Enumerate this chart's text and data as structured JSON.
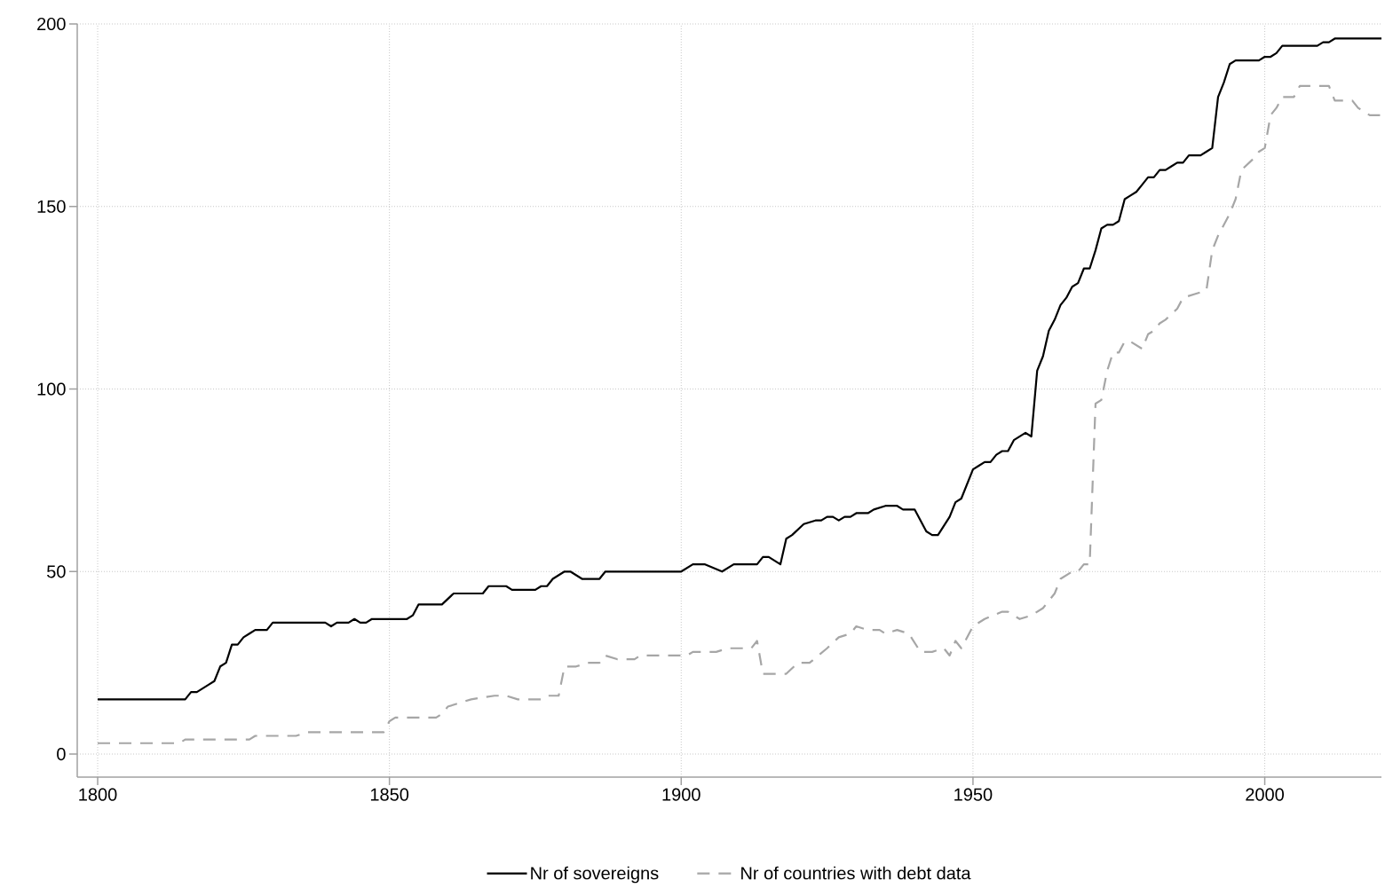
{
  "chart_data": {
    "type": "line",
    "xlim": [
      1796.5,
      2020
    ],
    "ylim": [
      -6.3,
      200
    ],
    "xticks": [
      1800,
      1850,
      1900,
      1950,
      2000
    ],
    "yticks": [
      0,
      50,
      100,
      150,
      200
    ],
    "grid": true,
    "legend": "bottom",
    "marker": "none",
    "series": [
      {
        "name": "Nr of sovereigns",
        "color": "#000000",
        "line_style": "solid",
        "x": [
          1800,
          1815,
          1816,
          1817,
          1819,
          1820,
          1821,
          1822,
          1823,
          1824,
          1825,
          1826,
          1827,
          1829,
          1830,
          1839,
          1840,
          1841,
          1843,
          1844,
          1845,
          1846,
          1847,
          1853,
          1854,
          1855,
          1859,
          1861,
          1866,
          1867,
          1870,
          1871,
          1875,
          1876,
          1877,
          1878,
          1880,
          1881,
          1883,
          1886,
          1887,
          1900,
          1902,
          1904,
          1907,
          1909,
          1913,
          1914,
          1915,
          1917,
          1918,
          1919,
          1921,
          1923,
          1924,
          1925,
          1926,
          1927,
          1928,
          1929,
          1930,
          1932,
          1933,
          1935,
          1937,
          1938,
          1940,
          1942,
          1943,
          1944,
          1946,
          1947,
          1948,
          1950,
          1951,
          1952,
          1953,
          1954,
          1955,
          1956,
          1957,
          1959,
          1960,
          1961,
          1962,
          1963,
          1964,
          1965,
          1966,
          1967,
          1968,
          1969,
          1970,
          1971,
          1972,
          1973,
          1974,
          1975,
          1976,
          1977,
          1978,
          1979,
          1980,
          1981,
          1982,
          1983,
          1984,
          1985,
          1986,
          1987,
          1989,
          1990,
          1991,
          1992,
          1993,
          1994,
          1995,
          1999,
          2000,
          2001,
          2002,
          2003,
          2009,
          2010,
          2011,
          2012,
          2020
        ],
        "values": [
          15,
          15,
          17,
          17,
          19,
          20,
          24,
          25,
          30,
          30,
          32,
          33,
          34,
          34,
          36,
          36,
          35,
          36,
          36,
          37,
          36,
          36,
          37,
          37,
          38,
          41,
          41,
          44,
          44,
          46,
          46,
          45,
          45,
          46,
          46,
          48,
          50,
          50,
          48,
          48,
          50,
          50,
          52,
          52,
          50,
          52,
          52,
          54,
          54,
          52,
          59,
          60,
          63,
          64,
          64,
          65,
          65,
          64,
          65,
          65,
          66,
          66,
          67,
          68,
          68,
          67,
          67,
          61,
          60,
          60,
          65,
          69,
          70,
          78,
          79,
          80,
          80,
          82,
          83,
          83,
          86,
          88,
          87,
          105,
          109,
          116,
          119,
          123,
          125,
          128,
          129,
          133,
          133,
          138,
          144,
          145,
          145,
          146,
          152,
          153,
          154,
          156,
          158,
          158,
          160,
          160,
          161,
          162,
          162,
          164,
          164,
          165,
          166,
          180,
          184,
          189,
          190,
          190,
          191,
          191,
          192,
          194,
          194,
          195,
          195,
          196,
          196
        ]
      },
      {
        "name": "Nr of countries with debt data",
        "color": "#a6a6a6",
        "line_style": "dashed",
        "x": [
          1800,
          1814,
          1815,
          1826,
          1827,
          1834,
          1836,
          1849,
          1850,
          1851,
          1858,
          1859,
          1860,
          1862,
          1864,
          1868,
          1870,
          1872,
          1876,
          1877,
          1879,
          1880,
          1882,
          1884,
          1886,
          1887,
          1889,
          1892,
          1893,
          1900,
          1901,
          1902,
          1906,
          1908,
          1912,
          1913,
          1914,
          1918,
          1920,
          1922,
          1925,
          1927,
          1929,
          1930,
          1932,
          1934,
          1935,
          1937,
          1939,
          1941,
          1943,
          1945,
          1946,
          1947,
          1948,
          1950,
          1952,
          1955,
          1956,
          1958,
          1960,
          1962,
          1963,
          1964,
          1965,
          1967,
          1968,
          1969,
          1970,
          1971,
          1972,
          1973,
          1974,
          1975,
          1976,
          1977,
          1979,
          1980,
          1981,
          1982,
          1983,
          1985,
          1986,
          1988,
          1990,
          1991,
          1992,
          1994,
          1995,
          1996,
          1998,
          1999,
          2000,
          2001,
          2002,
          2003,
          2005,
          2006,
          2010,
          2011,
          2012,
          2015,
          2016,
          2018,
          2020
        ],
        "values": [
          3,
          3,
          4,
          4,
          5,
          5,
          6,
          6,
          9,
          10,
          10,
          11,
          13,
          14,
          15,
          16,
          16,
          15,
          15,
          16,
          16,
          24,
          24,
          25,
          25,
          27,
          26,
          26,
          27,
          27,
          27,
          28,
          28,
          29,
          29,
          31,
          22,
          22,
          25,
          25,
          29,
          32,
          33,
          35,
          34,
          34,
          33,
          34,
          33,
          28,
          28,
          29,
          27,
          31,
          29,
          35,
          37,
          39,
          39,
          37,
          38,
          40,
          42,
          44,
          48,
          50,
          50,
          52,
          52,
          96,
          97,
          105,
          110,
          110,
          113,
          113,
          111,
          115,
          116,
          118,
          119,
          122,
          125,
          126,
          127,
          138,
          142,
          148,
          152,
          160,
          163,
          165,
          166,
          175,
          177,
          180,
          180,
          183,
          183,
          183,
          179,
          179,
          177,
          175,
          175
        ]
      }
    ]
  }
}
